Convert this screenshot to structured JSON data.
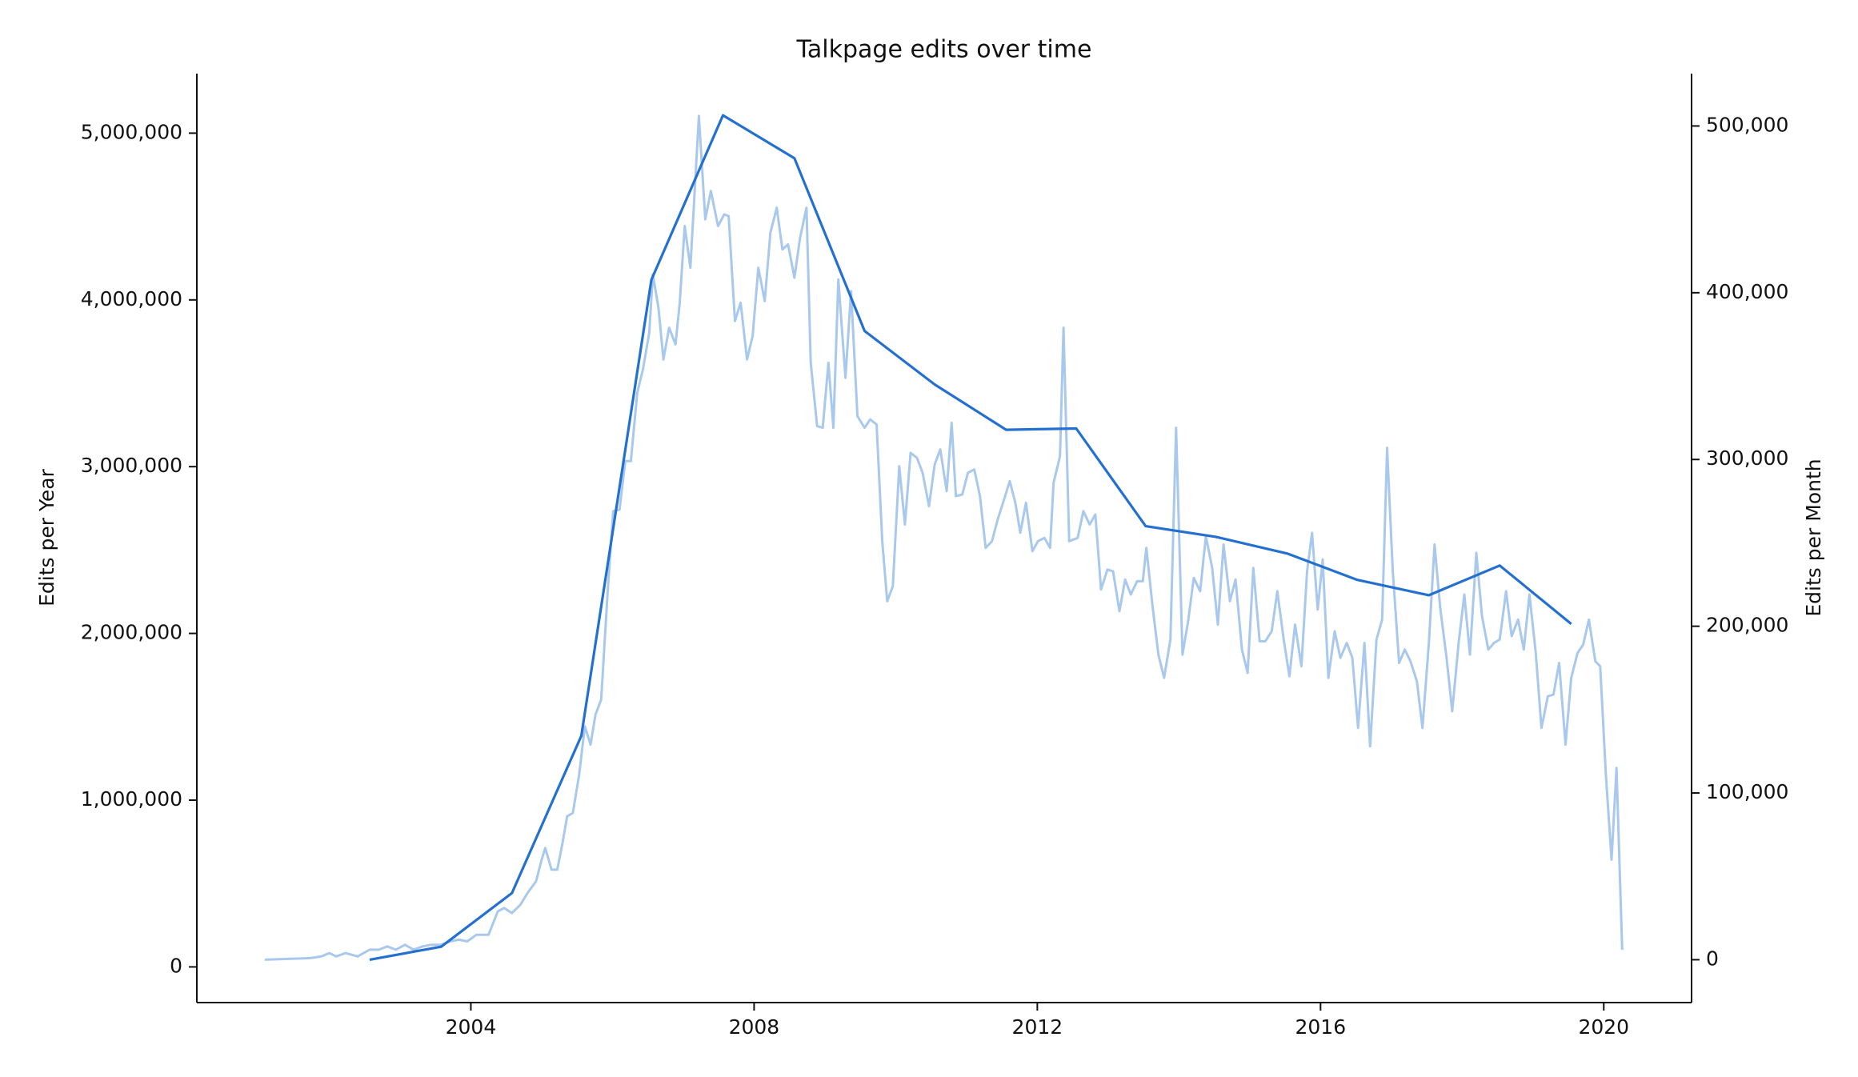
{
  "chart_data": {
    "type": "line",
    "title": "Talkpage edits over time",
    "ylabel": "Edits per Year",
    "y2label": "Edits per Month",
    "xlim": [
      2000.13,
      2021.24
    ],
    "xticks": [
      2004,
      2008,
      2012,
      2016,
      2020
    ],
    "ylim": [
      -214000,
      5357000
    ],
    "yticks": [
      0,
      {
        "value": 1000000,
        "label": "1,000,000"
      },
      {
        "value": 2000000,
        "label": "2,000,000"
      },
      {
        "value": 3000000,
        "label": "3,000,000"
      },
      {
        "value": 4000000,
        "label": "4,000,000"
      },
      {
        "value": 5000000,
        "label": "5,000,000"
      }
    ],
    "y2lim": [
      -25700,
      531400
    ],
    "y2ticks": [
      0,
      {
        "value": 100000,
        "label": "100,000"
      },
      {
        "value": 200000,
        "label": "200,000"
      },
      {
        "value": 300000,
        "label": "300,000"
      },
      {
        "value": 400000,
        "label": "400,000"
      },
      {
        "value": 500000,
        "label": "500,000"
      }
    ],
    "grid": false,
    "series": [
      {
        "name": "Edits per Month",
        "color": "#a9c8ed",
        "axis": "y2",
        "x": [
          2001.09,
          2001.73,
          2001.89,
          2002.0,
          2002.1,
          2002.23,
          2002.4,
          2002.57,
          2002.7,
          2002.82,
          2002.94,
          2003.07,
          2003.19,
          2003.32,
          2003.44,
          2003.58,
          2003.71,
          2003.83,
          2003.95,
          2004.08,
          2004.25,
          2004.38,
          2004.47,
          2004.58,
          2004.7,
          2004.8,
          2004.92,
          2005.0,
          2005.05,
          2005.14,
          2005.22,
          2005.29,
          2005.36,
          2005.44,
          2005.53,
          2005.61,
          2005.69,
          2005.76,
          2005.84,
          2005.93,
          2006.01,
          2006.1,
          2006.18,
          2006.26,
          2006.35,
          2006.43,
          2006.52,
          2006.57,
          2006.65,
          2006.72,
          2006.8,
          2006.89,
          2006.95,
          2007.02,
          2007.1,
          2007.22,
          2007.31,
          2007.39,
          2007.49,
          2007.58,
          2007.64,
          2007.73,
          2007.81,
          2007.9,
          2007.98,
          2008.06,
          2008.15,
          2008.23,
          2008.32,
          2008.4,
          2008.48,
          2008.57,
          2008.65,
          2008.74,
          2008.8,
          2008.89,
          2008.97,
          2009.05,
          2009.12,
          2009.19,
          2009.29,
          2009.37,
          2009.46,
          2009.56,
          2009.64,
          2009.73,
          2009.81,
          2009.88,
          2009.96,
          2010.05,
          2010.13,
          2010.21,
          2010.3,
          2010.38,
          2010.47,
          2010.55,
          2010.63,
          2010.72,
          2010.79,
          2010.85,
          2010.94,
          2011.02,
          2011.11,
          2011.19,
          2011.27,
          2011.36,
          2011.44,
          2011.53,
          2011.61,
          2011.69,
          2011.76,
          2011.84,
          2011.93,
          2012.01,
          2012.1,
          2012.18,
          2012.23,
          2012.32,
          2012.37,
          2012.45,
          2012.57,
          2012.65,
          2012.74,
          2012.82,
          2012.9,
          2012.99,
          2013.07,
          2013.16,
          2013.24,
          2013.32,
          2013.41,
          2013.49,
          2013.54,
          2013.63,
          2013.71,
          2013.79,
          2013.88,
          2013.96,
          2014.05,
          2014.13,
          2014.21,
          2014.3,
          2014.38,
          2014.47,
          2014.55,
          2014.63,
          2014.72,
          2014.8,
          2014.89,
          2014.97,
          2015.05,
          2015.14,
          2015.22,
          2015.31,
          2015.39,
          2015.48,
          2015.56,
          2015.64,
          2015.73,
          2015.81,
          2015.88,
          2015.96,
          2016.03,
          2016.11,
          2016.2,
          2016.28,
          2016.37,
          2016.45,
          2016.53,
          2016.62,
          2016.7,
          2016.79,
          2016.87,
          2016.94,
          2017.02,
          2017.11,
          2017.19,
          2017.27,
          2017.36,
          2017.44,
          2017.53,
          2017.61,
          2017.69,
          2017.78,
          2017.86,
          2017.95,
          2018.03,
          2018.11,
          2018.2,
          2018.28,
          2018.37,
          2018.45,
          2018.53,
          2018.62,
          2018.7,
          2018.79,
          2018.87,
          2018.95,
          2019.04,
          2019.12,
          2019.21,
          2019.29,
          2019.37,
          2019.46,
          2019.54,
          2019.63,
          2019.71,
          2019.79,
          2019.88,
          2019.95,
          2020.03,
          2020.11,
          2020.18,
          2020.26
        ],
        "values": [
          0,
          1000,
          2000,
          4000,
          2000,
          4000,
          2000,
          6000,
          6000,
          8000,
          6000,
          9000,
          6000,
          8000,
          9000,
          9000,
          11000,
          12000,
          11000,
          15000,
          15000,
          29000,
          31000,
          28000,
          33000,
          40000,
          47000,
          60000,
          67000,
          54000,
          54000,
          69000,
          86000,
          88000,
          111000,
          140000,
          129000,
          147000,
          156000,
          219000,
          269000,
          270000,
          299000,
          299000,
          340000,
          354000,
          376000,
          411000,
          391000,
          360000,
          379000,
          369000,
          394000,
          440000,
          415000,
          506000,
          444000,
          461000,
          440000,
          447000,
          446000,
          383000,
          394000,
          360000,
          374000,
          415000,
          395000,
          436000,
          451000,
          426000,
          429000,
          409000,
          433000,
          451000,
          358000,
          320000,
          319000,
          358000,
          319000,
          408000,
          349000,
          401000,
          326000,
          319000,
          324000,
          321000,
          251000,
          215000,
          224000,
          296000,
          261000,
          304000,
          301000,
          292000,
          272000,
          297000,
          306000,
          281000,
          322000,
          278000,
          279000,
          292000,
          294000,
          278000,
          247000,
          251000,
          264000,
          276000,
          287000,
          274000,
          256000,
          274000,
          245000,
          251000,
          253000,
          247000,
          286000,
          302000,
          379000,
          251000,
          253000,
          269000,
          261000,
          267000,
          222000,
          234000,
          233000,
          209000,
          228000,
          219000,
          227000,
          227000,
          247000,
          211000,
          183000,
          169000,
          192000,
          319000,
          183000,
          203000,
          229000,
          221000,
          254000,
          235000,
          201000,
          249000,
          215000,
          228000,
          186000,
          172000,
          235000,
          191000,
          191000,
          197000,
          221000,
          192000,
          170000,
          201000,
          176000,
          233000,
          256000,
          210000,
          240000,
          169000,
          197000,
          181000,
          190000,
          181000,
          139000,
          190000,
          128000,
          192000,
          204000,
          307000,
          233000,
          178000,
          186000,
          179000,
          167000,
          139000,
          190000,
          249000,
          211000,
          181000,
          149000,
          190000,
          219000,
          183000,
          244000,
          206000,
          186000,
          190000,
          192000,
          221000,
          194000,
          204000,
          186000,
          219000,
          184000,
          139000,
          158000,
          159000,
          178000,
          129000,
          169000,
          184000,
          189000,
          204000,
          179000,
          176000,
          111000,
          60000,
          115000,
          6000
        ]
      },
      {
        "name": "Edits per Year",
        "color": "#2470d0",
        "axis": "y",
        "x": [
          2002.57,
          2003.58,
          2004.58,
          2005.56,
          2006.55,
          2007.56,
          2008.57,
          2009.56,
          2010.55,
          2011.56,
          2012.55,
          2013.53,
          2014.52,
          2015.53,
          2016.52,
          2017.53,
          2018.53,
          2019.54
        ],
        "values": [
          43000,
          121000,
          443000,
          1386000,
          4121000,
          5107000,
          4850000,
          3814000,
          3493000,
          3221000,
          3229000,
          2643000,
          2579000,
          2479000,
          2321000,
          2229000,
          2407000,
          2057000
        ]
      }
    ]
  }
}
